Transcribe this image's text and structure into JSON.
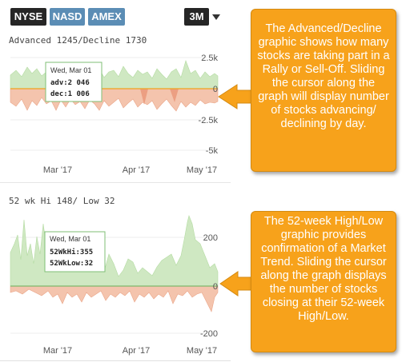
{
  "exchange_tabs": [
    {
      "label": "NYSE",
      "active": true
    },
    {
      "label": "NASD",
      "active": false
    },
    {
      "label": "AMEX",
      "active": false
    }
  ],
  "range": {
    "selected": "3M"
  },
  "advance_decline": {
    "title": "Advanced 1245/Decline 1730",
    "y_ticks": [
      "2.5k",
      "0",
      "-2.5k",
      "-5k"
    ],
    "x_ticks": [
      "Mar '17",
      "Apr '17",
      "May '17"
    ],
    "tooltip": {
      "date": "Wed, Mar 01",
      "line1": "adv:2 046",
      "line2": "dec:1 006"
    }
  },
  "high_low": {
    "title": "52 wk Hi 148/ Low 32",
    "y_ticks": [
      "200",
      "0",
      "-200"
    ],
    "x_ticks": [
      "Mar '17",
      "Apr '17",
      "May '17"
    ],
    "tooltip": {
      "date": "Wed, Mar 01",
      "line1": "52WkHi:355",
      "line2": "52WkLow:32"
    }
  },
  "callouts": {
    "advance_decline": "The Advanced/Decline graphic shows how many stocks are taking part in a Rally or Sell-Off. Sliding the cursor along the graph will display number of stocks advancing/ declining by day.",
    "high_low": "The 52-week High/Low graphic provides confirmation of a Market Trend. Sliding the cursor along the graph displays the number of stocks closing at their 52-week High/Low."
  },
  "colors": {
    "active_tab": "#262626",
    "inactive_tab": "#5b8db5",
    "advance_fill": "#cfe8c2",
    "decline_fill": "#f4c4ad",
    "zero_line_ad": "#f0a020",
    "zero_line_hl": "#7fb86b",
    "callout_bg": "#f7a21b"
  },
  "icons": {
    "range_dropdown": "caret-down-icon",
    "pointer": "arrow-left-icon"
  }
}
